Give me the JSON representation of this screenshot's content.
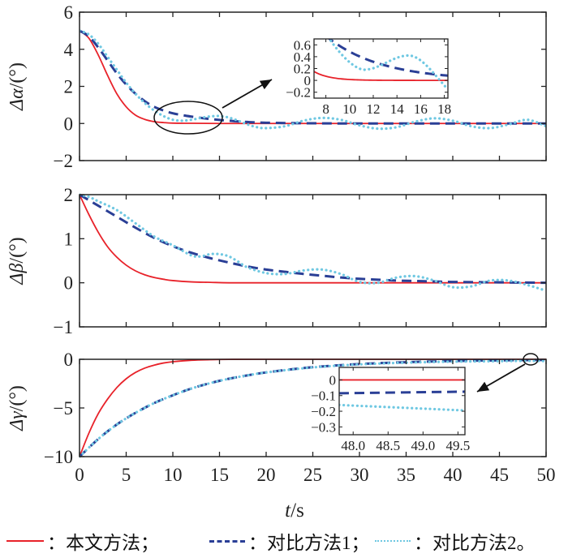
{
  "chart_data": {
    "type": "line",
    "xlabel_italic": "t",
    "xlabel_unit": "/s",
    "x_ticks": [
      "0",
      "5",
      "10",
      "15",
      "20",
      "25",
      "30",
      "35",
      "40",
      "45",
      "50"
    ],
    "xlim": [
      0,
      50
    ],
    "legend": [
      {
        "name": "本文方法",
        "sep": "：",
        "suffix": "；",
        "style": "solid",
        "color": "#e8222a"
      },
      {
        "name": "对比方法1",
        "sep": "：",
        "suffix": "；",
        "style": "dashed",
        "color": "#2a3f96"
      },
      {
        "name": "对比方法2",
        "sep": "：",
        "suffix": "。",
        "style": "dotted",
        "color": "#6fc8e2"
      }
    ],
    "legend_placement": "bottom",
    "panels": [
      {
        "ylabel_greek": "Δα",
        "ylabel_unit": "/(°)",
        "ylim": [
          -2,
          6
        ],
        "y_ticks": [
          "6",
          "4",
          "2",
          "0",
          "−2"
        ],
        "y_tick_values": [
          6,
          4,
          2,
          0,
          -2
        ],
        "series": [
          {
            "name": "本文方法",
            "x": [
              0,
              1,
              2,
              3,
              4,
              5,
              6,
              7,
              8,
              9,
              10,
              12,
              15,
              20,
              30,
              40,
              50
            ],
            "y": [
              5,
              4.6,
              3.7,
              2.6,
              1.6,
              0.9,
              0.45,
              0.22,
              0.1,
              0.05,
              0.02,
              0.01,
              0,
              0,
              0,
              0,
              0
            ]
          },
          {
            "name": "对比方法1",
            "x": [
              0,
              1,
              2,
              3,
              4,
              5,
              6,
              7,
              8,
              9,
              10,
              11,
              12,
              13,
              14,
              15,
              16,
              17,
              18,
              20,
              25,
              30,
              40,
              50
            ],
            "y": [
              5,
              4.7,
              4.1,
              3.4,
              2.7,
              2.1,
              1.6,
              1.2,
              0.9,
              0.7,
              0.55,
              0.45,
              0.37,
              0.3,
              0.24,
              0.19,
              0.15,
              0.11,
              0.08,
              0.04,
              0.01,
              0,
              0,
              0
            ]
          },
          {
            "name": "对比方法2",
            "x": [
              0,
              1,
              2,
              3,
              4,
              5,
              6,
              7,
              8,
              9,
              10,
              11,
              12,
              13,
              14,
              15,
              16,
              17,
              18,
              19,
              20,
              22,
              24,
              26,
              28,
              30,
              32,
              34,
              36,
              38,
              40,
              42,
              44,
              46,
              48,
              50
            ],
            "y": [
              5,
              4.8,
              4.3,
              3.6,
              2.9,
              2.2,
              1.6,
              1.1,
              0.7,
              0.4,
              0.2,
              0.15,
              0.2,
              0.3,
              0.38,
              0.4,
              0.32,
              0.15,
              -0.05,
              -0.2,
              -0.25,
              -0.15,
              0.15,
              0.3,
              0.2,
              -0.1,
              -0.28,
              -0.2,
              0.1,
              0.28,
              0.15,
              -0.15,
              -0.25,
              -0.05,
              0.2,
              -0.15
            ]
          }
        ],
        "inset": {
          "xlim": [
            7,
            18.3
          ],
          "ylim": [
            -0.3,
            0.7
          ],
          "x_ticks": [
            "8",
            "10",
            "12",
            "14",
            "16",
            "18"
          ],
          "x_tick_values": [
            8,
            10,
            12,
            14,
            16,
            18
          ],
          "y_ticks": [
            "0.6",
            "0.4",
            "0.2",
            "0",
            "−0.2"
          ],
          "y_tick_values": [
            0.6,
            0.4,
            0.2,
            0,
            -0.2
          ],
          "region": "t≈8–18"
        }
      },
      {
        "ylabel_greek": "Δβ",
        "ylabel_unit": "/(°)",
        "ylim": [
          -1,
          2
        ],
        "y_ticks": [
          "2",
          "1",
          "0",
          "−1"
        ],
        "y_tick_values": [
          2,
          1,
          0,
          -1
        ],
        "series": [
          {
            "name": "本文方法",
            "x": [
              0,
              1,
              2,
              3,
              4,
              5,
              6,
              7,
              8,
              9,
              10,
              12,
              14,
              16,
              20,
              30,
              40,
              50
            ],
            "y": [
              2,
              1.55,
              1.15,
              0.82,
              0.58,
              0.4,
              0.27,
              0.18,
              0.12,
              0.08,
              0.05,
              0.02,
              0.01,
              0,
              0,
              0,
              0,
              0
            ]
          },
          {
            "name": "对比方法1",
            "x": [
              0,
              2,
              4,
              6,
              8,
              10,
              12,
              14,
              16,
              18,
              20,
              22,
              24,
              26,
              28,
              30,
              32,
              34,
              36,
              38,
              40,
              45,
              50
            ],
            "y": [
              2,
              1.75,
              1.5,
              1.25,
              1.02,
              0.83,
              0.68,
              0.56,
              0.46,
              0.37,
              0.3,
              0.25,
              0.2,
              0.16,
              0.12,
              0.09,
              0.07,
              0.05,
              0.04,
              0.03,
              0.02,
              0.01,
              0
            ]
          },
          {
            "name": "对比方法2",
            "x": [
              0,
              1,
              2,
              4,
              6,
              8,
              10,
              12,
              13,
              14,
              15,
              16,
              17,
              18,
              20,
              22,
              24,
              26,
              28,
              30,
              32,
              34,
              36,
              38,
              40,
              42,
              44,
              46,
              48,
              50
            ],
            "y": [
              2,
              1.95,
              1.85,
              1.65,
              1.35,
              1.05,
              0.85,
              0.62,
              0.6,
              0.65,
              0.65,
              0.6,
              0.48,
              0.35,
              0.22,
              0.2,
              0.28,
              0.3,
              0.2,
              0.02,
              0.0,
              0.12,
              0.15,
              0.05,
              -0.1,
              -0.08,
              0.05,
              0.05,
              -0.05,
              -0.18
            ]
          }
        ]
      },
      {
        "ylabel_greek": "Δγ",
        "ylabel_unit": "/(°)",
        "ylim": [
          -10,
          0
        ],
        "y_ticks": [
          "0",
          "−5",
          "−10"
        ],
        "y_tick_values": [
          0,
          -5,
          -10
        ],
        "series": [
          {
            "name": "本文方法",
            "x": [
              0,
              1,
              2,
              3,
              4,
              5,
              6,
              7,
              8,
              9,
              10,
              12,
              14,
              16,
              20,
              30,
              40,
              50
            ],
            "y": [
              -10,
              -7.6,
              -5.6,
              -4.1,
              -2.9,
              -2.0,
              -1.35,
              -0.9,
              -0.6,
              -0.38,
              -0.25,
              -0.1,
              -0.04,
              -0.01,
              0,
              0,
              0,
              0
            ]
          },
          {
            "name": "对比方法1",
            "x": [
              0,
              2,
              4,
              6,
              8,
              10,
              12,
              14,
              16,
              18,
              20,
              24,
              28,
              32,
              36,
              40,
              44,
              48,
              50
            ],
            "y": [
              -10,
              -8.2,
              -6.7,
              -5.5,
              -4.5,
              -3.7,
              -3.0,
              -2.45,
              -2.0,
              -1.65,
              -1.35,
              -0.9,
              -0.6,
              -0.4,
              -0.27,
              -0.18,
              -0.12,
              -0.08,
              -0.07
            ]
          },
          {
            "name": "对比方法2",
            "x": [
              0,
              2,
              4,
              6,
              8,
              10,
              12,
              14,
              16,
              18,
              20,
              24,
              28,
              32,
              36,
              40,
              44,
              48,
              50
            ],
            "y": [
              -10,
              -8.2,
              -6.7,
              -5.5,
              -4.5,
              -3.7,
              -3.0,
              -2.45,
              -2.0,
              -1.65,
              -1.35,
              -0.92,
              -0.63,
              -0.44,
              -0.32,
              -0.24,
              -0.2,
              -0.16,
              -0.18
            ]
          }
        ],
        "inset": {
          "xlim": [
            47.8,
            49.6
          ],
          "ylim": [
            -0.35,
            0.08
          ],
          "x_ticks": [
            "48.0",
            "48.5",
            "49.0",
            "49.5"
          ],
          "x_tick_values": [
            48.0,
            48.5,
            49.0,
            49.5
          ],
          "y_ticks": [
            "0",
            "−0.1",
            "−0.2",
            "−0.3"
          ],
          "y_tick_values": [
            0,
            -0.1,
            -0.2,
            -0.3
          ],
          "region": "t≈48–49.5",
          "series": [
            {
              "name": "本文方法",
              "x": [
                47.8,
                49.6
              ],
              "y": [
                0,
                0
              ]
            },
            {
              "name": "对比方法1",
              "x": [
                47.8,
                49.6
              ],
              "y": [
                -0.085,
                -0.075
              ]
            },
            {
              "name": "对比方法2",
              "x": [
                47.8,
                49.6
              ],
              "y": [
                -0.16,
                -0.195
              ]
            }
          ]
        }
      }
    ]
  }
}
